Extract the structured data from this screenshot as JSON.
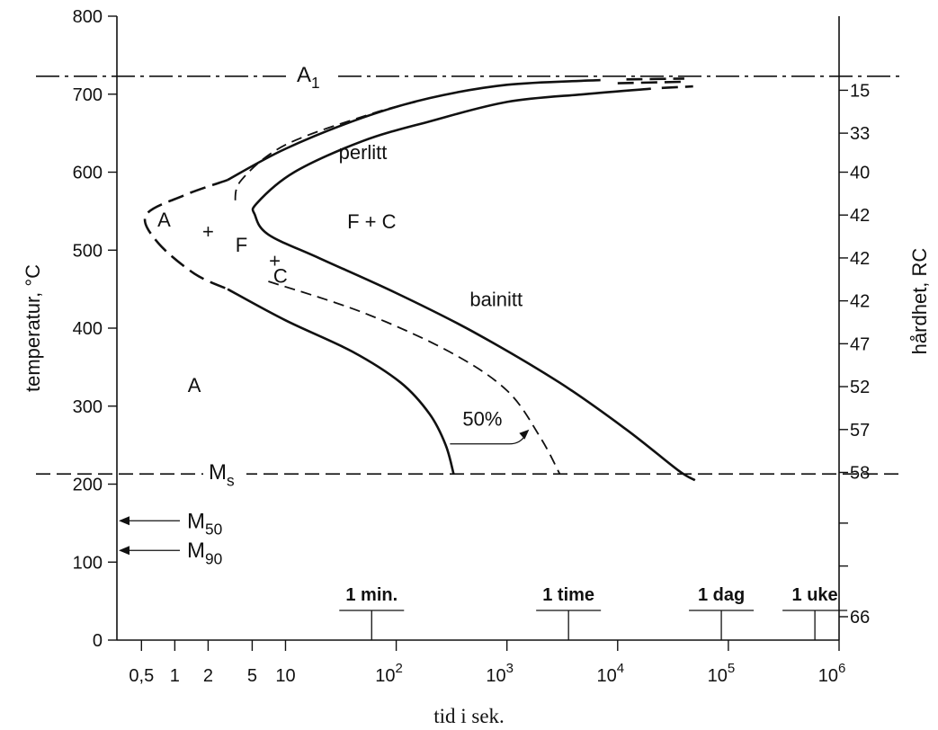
{
  "chart_data": {
    "type": "line",
    "xlabel": "tid i sek.",
    "ylabel": "temperatur, °C",
    "ylabel_right": "hårdhet, RC",
    "x_scale": "log",
    "xlim": [
      0.3,
      1000000
    ],
    "ylim": [
      0,
      800
    ],
    "y_ticks": [
      0,
      100,
      200,
      300,
      400,
      500,
      600,
      700,
      800
    ],
    "x_ticks": [
      {
        "value": 0.5,
        "label": "0,5"
      },
      {
        "value": 1,
        "label": "1"
      },
      {
        "value": 2,
        "label": "2"
      },
      {
        "value": 5,
        "label": "5"
      },
      {
        "value": 10,
        "label": "10"
      },
      {
        "value": 100,
        "label": "10",
        "sup": "2"
      },
      {
        "value": 1000,
        "label": "10",
        "sup": "3"
      },
      {
        "value": 10000,
        "label": "10",
        "sup": "4"
      },
      {
        "value": 100000,
        "label": "10",
        "sup": "5"
      },
      {
        "value": 1000000,
        "label": "10",
        "sup": "6"
      }
    ],
    "right_ticks": [
      {
        "temp": 705,
        "label": "15"
      },
      {
        "temp": 650,
        "label": "33"
      },
      {
        "temp": 600,
        "label": "40"
      },
      {
        "temp": 545,
        "label": "42"
      },
      {
        "temp": 490,
        "label": "42"
      },
      {
        "temp": 435,
        "label": "42"
      },
      {
        "temp": 380,
        "label": "47"
      },
      {
        "temp": 325,
        "label": "52"
      },
      {
        "temp": 270,
        "label": "57"
      },
      {
        "temp": 215,
        "label": "58"
      },
      {
        "temp": 150,
        "label": ""
      },
      {
        "temp": 95,
        "label": ""
      },
      {
        "temp": 30,
        "label": "66"
      }
    ],
    "reference_lines": [
      {
        "name": "A",
        "sub": "1",
        "temp": 723,
        "style": "dash-dot"
      },
      {
        "name": "M",
        "sub": "s",
        "temp": 213,
        "style": "dashed"
      }
    ],
    "arrow_markers": [
      {
        "name": "M",
        "sub": "50",
        "temp": 153
      },
      {
        "name": "M",
        "sub": "90",
        "temp": 115
      }
    ],
    "time_markers": [
      {
        "label": "1 min.",
        "time": 60
      },
      {
        "label": "1 time",
        "time": 3600
      },
      {
        "label": "1 dag",
        "time": 86400
      },
      {
        "label": "1 uke",
        "time": 604800
      }
    ],
    "series": [
      {
        "style": "solid-start",
        "points": [
          [
            7000,
            718
          ],
          [
            1000,
            712
          ],
          [
            200,
            695
          ],
          [
            50,
            670
          ],
          [
            10,
            630
          ],
          [
            3,
            590
          ]
        ],
        "dashed_points": [
          [
            3,
            590
          ],
          [
            1.2,
            570
          ],
          [
            0.55,
            545
          ],
          [
            0.7,
            510
          ],
          [
            1.5,
            470
          ],
          [
            3,
            450
          ]
        ],
        "tail_points": [
          [
            3,
            450
          ],
          [
            10,
            410
          ],
          [
            40,
            370
          ],
          [
            110,
            330
          ],
          [
            200,
            290
          ],
          [
            280,
            250
          ],
          [
            330,
            213
          ]
        ],
        "ext_points": [
          [
            12000,
            719
          ],
          [
            40000,
            720
          ]
        ]
      },
      {
        "name": "50%",
        "style": "dashed",
        "points": [
          [
            150,
            690
          ],
          [
            60,
            675
          ],
          [
            10,
            635
          ],
          [
            4,
            590
          ],
          [
            3.5,
            560
          ]
        ],
        "tail_points": [
          [
            7,
            460
          ],
          [
            50,
            420
          ],
          [
            300,
            370
          ],
          [
            1000,
            320
          ],
          [
            2000,
            260
          ],
          [
            3000,
            213
          ]
        ],
        "ext_points": [
          [
            10000,
            714
          ],
          [
            40000,
            716
          ]
        ]
      },
      {
        "style": "solid-end",
        "points": [
          [
            20000,
            707
          ],
          [
            5000,
            700
          ],
          [
            1000,
            690
          ],
          [
            200,
            665
          ],
          [
            50,
            640
          ],
          [
            12,
            600
          ],
          [
            5.5,
            560
          ],
          [
            5.3,
            545
          ],
          [
            7,
            520
          ],
          [
            20,
            490
          ],
          [
            100,
            445
          ],
          [
            500,
            395
          ],
          [
            3000,
            330
          ],
          [
            12000,
            270
          ],
          [
            35000,
            218
          ],
          [
            50000,
            205
          ]
        ],
        "ext_points": [
          [
            25000,
            708
          ],
          [
            48000,
            710
          ]
        ]
      }
    ],
    "annotations": [
      {
        "text": "perlitt",
        "time": 50,
        "temp": 617
      },
      {
        "text": "F + C",
        "time": 60,
        "temp": 528
      },
      {
        "text": "bainitt",
        "time": 800,
        "temp": 428
      },
      {
        "text": "A",
        "time": 0.8,
        "temp": 530
      },
      {
        "text": "+",
        "time": 2,
        "temp": 515
      },
      {
        "text": "F",
        "time": 4,
        "temp": 498
      },
      {
        "text": "+",
        "time": 8,
        "temp": 478
      },
      {
        "text": "C",
        "time": 9,
        "temp": 458
      },
      {
        "text": "A",
        "time": 1.5,
        "temp": 318
      },
      {
        "text": "50%",
        "time": 600,
        "temp": 275
      }
    ]
  }
}
